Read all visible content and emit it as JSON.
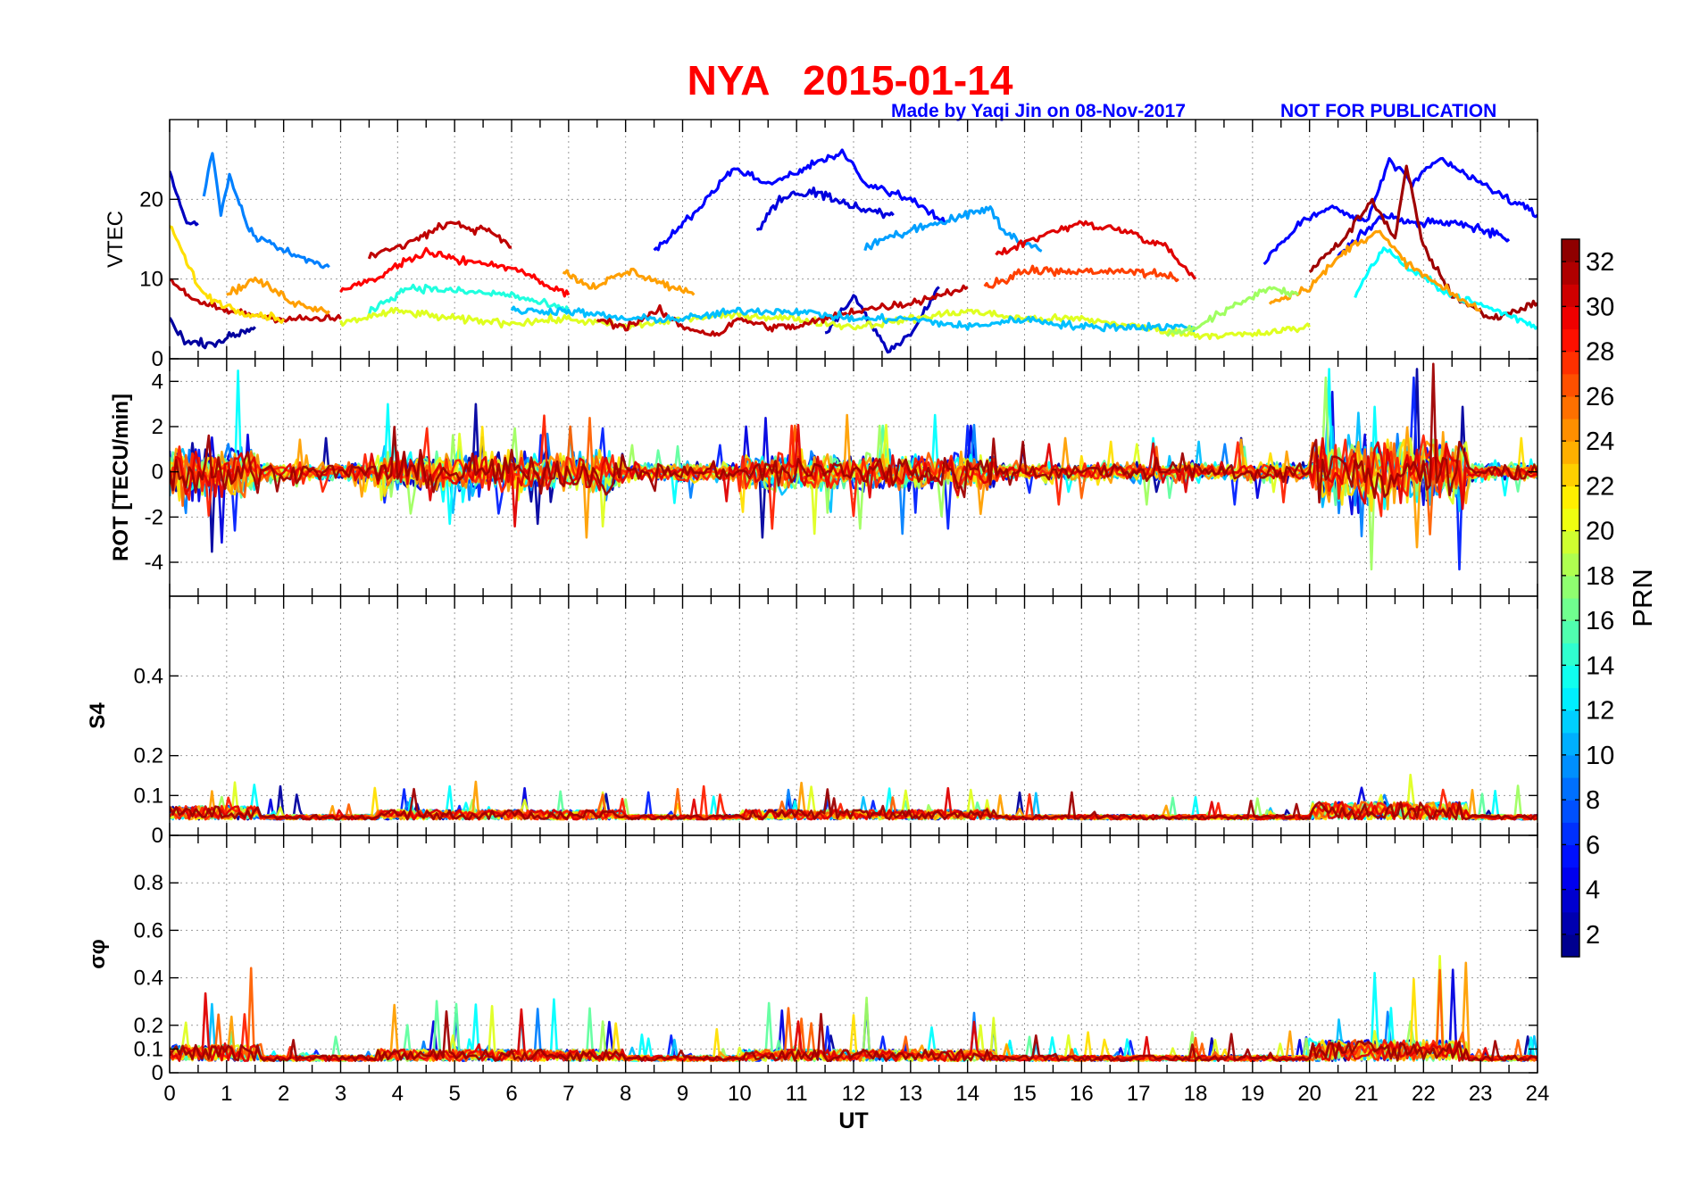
{
  "header": {
    "title": "NYA   2015-01-14",
    "credit_left": "Made by Yaqi Jin on 08-Nov-2017",
    "credit_right": "NOT FOR PUBLICATION"
  },
  "chart_data": {
    "type": "line",
    "x": {
      "label": "UT",
      "range": [
        0,
        24
      ],
      "ticks": [
        0,
        1,
        2,
        3,
        4,
        5,
        6,
        7,
        8,
        9,
        10,
        11,
        12,
        13,
        14,
        15,
        16,
        17,
        18,
        19,
        20,
        21,
        22,
        23,
        24
      ]
    },
    "panels": [
      {
        "id": "vtec",
        "ylabel": "VTEC",
        "ylim": [
          0,
          30
        ],
        "yticks": [
          0,
          10,
          20
        ],
        "series": [
          {
            "prn": 9,
            "points": [
              [
                0.6,
                20
              ],
              [
                0.75,
                26
              ],
              [
                0.9,
                18
              ],
              [
                1.05,
                23
              ],
              [
                1.4,
                16
              ],
              [
                2,
                13.5
              ],
              [
                2.8,
                11.5
              ]
            ]
          },
          {
            "prn": 3,
            "points": [
              [
                0,
                23
              ],
              [
                0.3,
                17
              ],
              [
                0.5,
                17
              ]
            ]
          },
          {
            "prn": 31,
            "points": [
              [
                3.5,
                12.5
              ],
              [
                4.3,
                15
              ],
              [
                4.9,
                17
              ],
              [
                5.6,
                16
              ],
              [
                6,
                14
              ]
            ]
          },
          {
            "prn": 29,
            "points": [
              [
                3,
                8.5
              ],
              [
                3.6,
                10
              ],
              [
                4.5,
                13.5
              ],
              [
                5.3,
                12
              ],
              [
                6,
                11.5
              ],
              [
                7,
                8
              ]
            ]
          },
          {
            "prn": 5,
            "points": [
              [
                8.5,
                13.5
              ],
              [
                9.3,
                19
              ],
              [
                9.9,
                24
              ],
              [
                10.5,
                22
              ],
              [
                11.2,
                24
              ],
              [
                11.8,
                26
              ],
              [
                12.2,
                22
              ],
              [
                13,
                20
              ],
              [
                13.6,
                17
              ]
            ]
          },
          {
            "prn": 4,
            "points": [
              [
                10.3,
                16
              ],
              [
                10.7,
                20
              ],
              [
                11.3,
                21
              ],
              [
                12.0,
                19
              ],
              [
                12.7,
                18
              ]
            ]
          },
          {
            "prn": 10,
            "points": [
              [
                12.2,
                14
              ],
              [
                13,
                16
              ],
              [
                14,
                18
              ],
              [
                14.4,
                19
              ],
              [
                14.6,
                16
              ],
              [
                15.3,
                13.5
              ]
            ]
          },
          {
            "prn": 30,
            "points": [
              [
                14.5,
                13
              ],
              [
                15.3,
                15.5
              ],
              [
                16,
                17
              ],
              [
                16.8,
                16
              ],
              [
                17.5,
                14
              ],
              [
                18,
                10
              ]
            ]
          },
          {
            "prn": 27,
            "points": [
              [
                14.3,
                9
              ],
              [
                15,
                11
              ],
              [
                16.2,
                11
              ],
              [
                17,
                11
              ],
              [
                17.7,
                10
              ]
            ]
          },
          {
            "prn": 3,
            "points": [
              [
                11.5,
                3
              ],
              [
                12,
                8
              ],
              [
                12.6,
                1
              ],
              [
                13,
                3
              ],
              [
                13.5,
                9
              ]
            ]
          },
          {
            "prn": 5,
            "points": [
              [
                19.2,
                12
              ],
              [
                19.8,
                17
              ],
              [
                20.4,
                19
              ],
              [
                21,
                17
              ],
              [
                21.4,
                25
              ],
              [
                21.8,
                22
              ],
              [
                22.3,
                25
              ],
              [
                23,
                22
              ],
              [
                23.5,
                20
              ],
              [
                24,
                18
              ]
            ]
          },
          {
            "prn": 5,
            "points": [
              [
                20.5,
                13
              ],
              [
                21.3,
                18
              ],
              [
                21.9,
                17
              ],
              [
                22.7,
                17
              ],
              [
                23.5,
                15
              ]
            ]
          },
          {
            "prn": 32,
            "points": [
              [
                20,
                11
              ],
              [
                20.6,
                15
              ],
              [
                21.1,
                20
              ],
              [
                21.5,
                15
              ],
              [
                21.7,
                24
              ],
              [
                22,
                14
              ],
              [
                22.5,
                8
              ],
              [
                23.2,
                5
              ],
              [
                24,
                7
              ]
            ]
          },
          {
            "prn": 13,
            "points": [
              [
                20.8,
                8
              ],
              [
                21.3,
                14
              ],
              [
                21.8,
                11
              ],
              [
                22.5,
                8
              ],
              [
                23.3,
                6
              ],
              [
                24,
                4
              ]
            ]
          },
          {
            "prn": 24,
            "points": [
              [
                19.3,
                7
              ],
              [
                20,
                9
              ],
              [
                20.7,
                14
              ],
              [
                21.2,
                16
              ],
              [
                21.7,
                12
              ],
              [
                22.3,
                9
              ],
              [
                23,
                6
              ]
            ]
          },
          {
            "prn": 2,
            "points": [
              [
                0,
                5
              ],
              [
                0.3,
                2
              ],
              [
                0.8,
                2
              ],
              [
                1.5,
                4
              ]
            ]
          },
          {
            "prn": 31,
            "points": [
              [
                0,
                10
              ],
              [
                0.5,
                7
              ],
              [
                1,
                6
              ],
              [
                2,
                5
              ],
              [
                3,
                5
              ]
            ]
          },
          {
            "prn": 22,
            "points": [
              [
                0,
                17
              ],
              [
                0.3,
                12
              ],
              [
                0.6,
                8
              ],
              [
                1.2,
                6
              ],
              [
                2,
                5
              ]
            ]
          },
          {
            "prn": 24,
            "points": [
              [
                1,
                8
              ],
              [
                1.5,
                10
              ],
              [
                2.2,
                7
              ],
              [
                2.8,
                6
              ]
            ]
          },
          {
            "prn": 24,
            "points": [
              [
                6.9,
                11
              ],
              [
                7.4,
                9
              ],
              [
                8.1,
                11
              ],
              [
                8.8,
                9
              ],
              [
                9.2,
                8
              ]
            ]
          },
          {
            "prn": 14,
            "points": [
              [
                3.5,
                6
              ],
              [
                4.2,
                9
              ],
              [
                5,
                8.5
              ],
              [
                6,
                8
              ],
              [
                7,
                6
              ]
            ]
          },
          {
            "prn": 20,
            "points": [
              [
                3,
                4.5
              ],
              [
                4,
                6
              ],
              [
                5,
                5
              ],
              [
                6,
                4.5
              ],
              [
                7,
                5
              ],
              [
                8,
                4
              ],
              [
                9,
                5
              ],
              [
                10,
                5.5
              ],
              [
                11,
                5
              ],
              [
                12,
                4
              ],
              [
                13,
                5
              ],
              [
                14,
                6
              ],
              [
                15,
                5
              ],
              [
                16,
                5
              ],
              [
                17,
                4
              ],
              [
                18,
                3
              ],
              [
                19,
                3
              ],
              [
                20,
                4
              ]
            ]
          },
          {
            "prn": 31,
            "points": [
              [
                7.5,
                5
              ],
              [
                8,
                4
              ],
              [
                8.6,
                6
              ],
              [
                9,
                4
              ],
              [
                9.6,
                3
              ],
              [
                10,
                5
              ],
              [
                10.5,
                4
              ],
              [
                11,
                4
              ],
              [
                12,
                6
              ],
              [
                13,
                7
              ],
              [
                14,
                9
              ]
            ]
          },
          {
            "prn": 11,
            "points": [
              [
                6,
                6
              ],
              [
                7,
                6
              ],
              [
                8,
                5
              ],
              [
                9,
                5
              ],
              [
                10,
                6
              ],
              [
                11,
                6
              ],
              [
                12,
                5
              ],
              [
                13,
                5
              ],
              [
                14,
                4
              ],
              [
                15,
                5
              ],
              [
                16,
                4
              ],
              [
                17,
                4
              ],
              [
                18,
                4
              ]
            ]
          },
          {
            "prn": 18,
            "points": [
              [
                17.5,
                3
              ],
              [
                18,
                4
              ],
              [
                18.8,
                7
              ],
              [
                19.3,
                9
              ],
              [
                19.8,
                8
              ]
            ]
          }
        ]
      },
      {
        "id": "rot",
        "ylabel": "ROT [TECU/min]",
        "ylim": [
          -5.5,
          5
        ],
        "yticks": [
          -4,
          -2,
          0,
          2,
          4
        ]
      },
      {
        "id": "s4",
        "ylabel": "S4",
        "ylim": [
          0,
          0.6
        ],
        "yticks": [
          0,
          0.1,
          0.2,
          0.4
        ]
      },
      {
        "id": "sigma_phi",
        "ylabel": "σφ",
        "ylim": [
          0,
          1
        ],
        "yticks": [
          0,
          0.1,
          0.2,
          0.4,
          0.6,
          0.8
        ]
      }
    ],
    "colorbar": {
      "label": "PRN",
      "range": [
        1,
        33
      ],
      "ticks": [
        2,
        4,
        6,
        8,
        10,
        12,
        14,
        16,
        18,
        20,
        22,
        24,
        26,
        28,
        30,
        32
      ],
      "colormap": "jet"
    }
  }
}
